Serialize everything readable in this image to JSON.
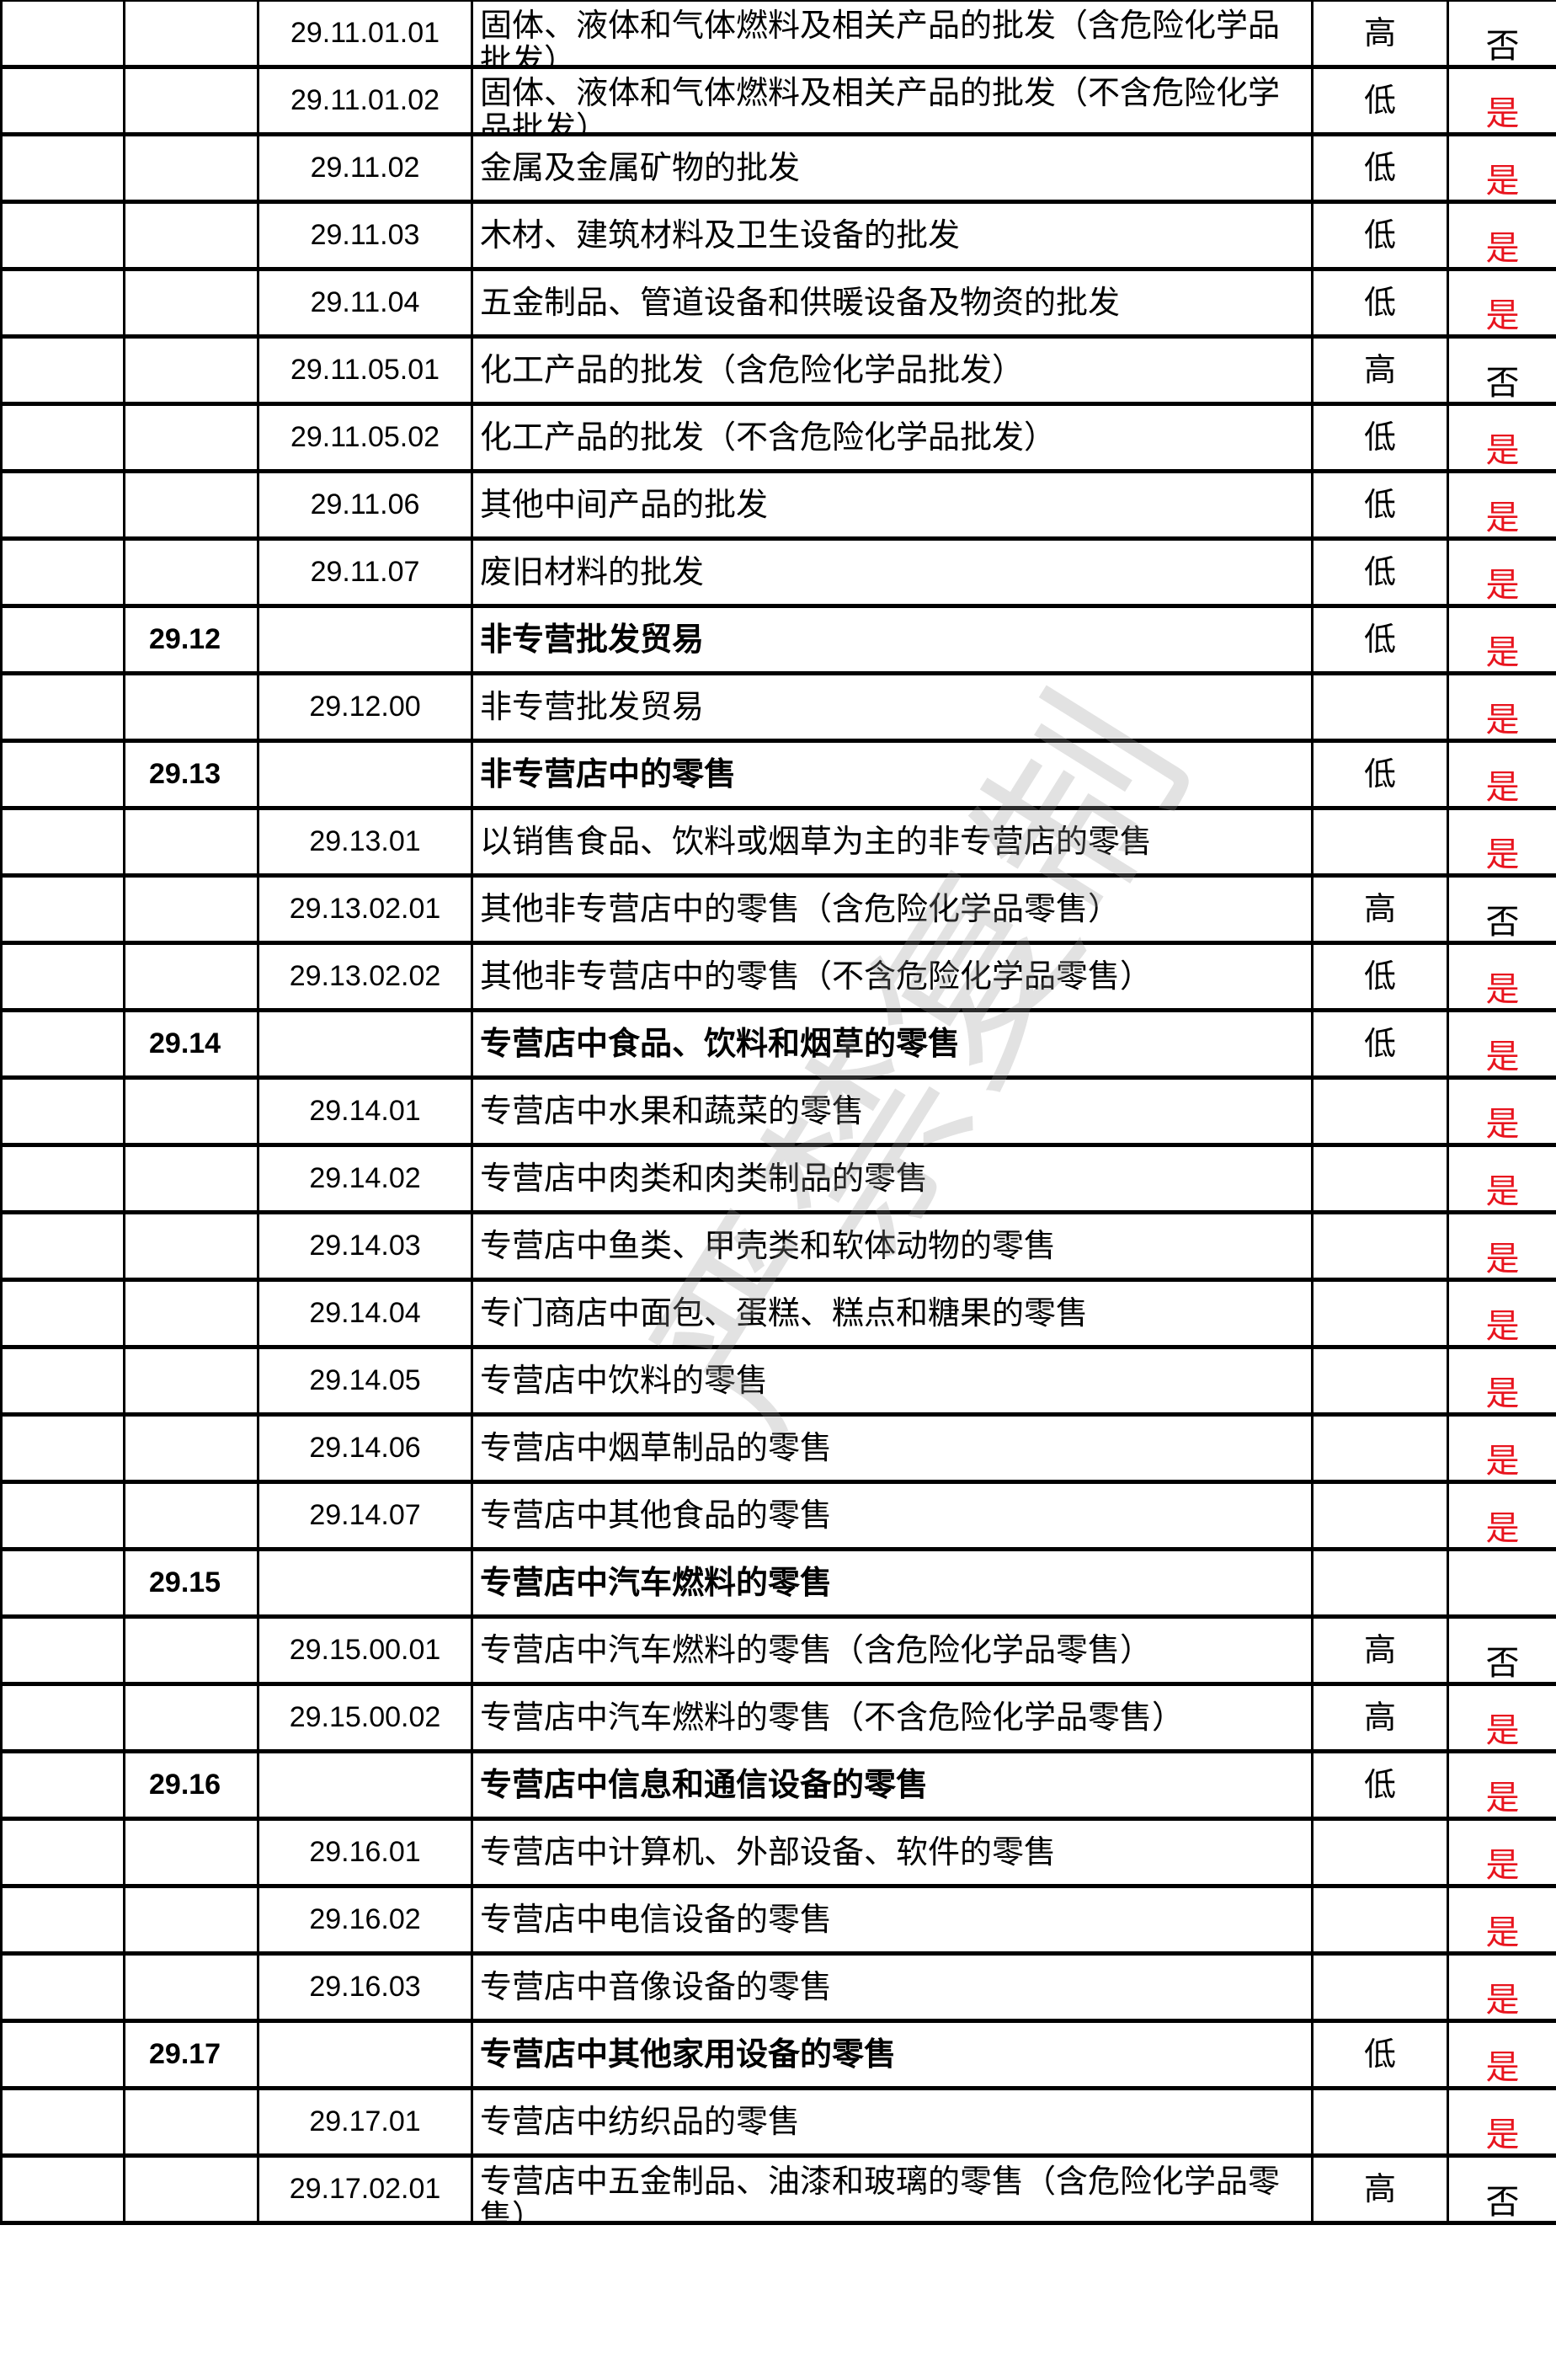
{
  "watermark": "严禁复制",
  "colors": {
    "yes": "#e8141e",
    "no": "#000000",
    "border": "#000000"
  },
  "rows": [
    {
      "group": "",
      "code": "29.11.01.01",
      "desc": "固体、液体和气体燃料及相关产品的批发（含危险化学品批发）",
      "risk": "高",
      "ok": "否"
    },
    {
      "group": "",
      "code": "29.11.01.02",
      "desc": "固体、液体和气体燃料及相关产品的批发（不含危险化学品批发）",
      "risk": "低",
      "ok": "是"
    },
    {
      "group": "",
      "code": "29.11.02",
      "desc": "金属及金属矿物的批发",
      "risk": "低",
      "ok": "是"
    },
    {
      "group": "",
      "code": "29.11.03",
      "desc": "木材、建筑材料及卫生设备的批发",
      "risk": "低",
      "ok": "是"
    },
    {
      "group": "",
      "code": "29.11.04",
      "desc": "五金制品、管道设备和供暖设备及物资的批发",
      "risk": "低",
      "ok": "是"
    },
    {
      "group": "",
      "code": "29.11.05.01",
      "desc": "化工产品的批发（含危险化学品批发）",
      "risk": "高",
      "ok": "否"
    },
    {
      "group": "",
      "code": "29.11.05.02",
      "desc": "化工产品的批发（不含危险化学品批发）",
      "risk": "低",
      "ok": "是"
    },
    {
      "group": "",
      "code": "29.11.06",
      "desc": "其他中间产品的批发",
      "risk": "低",
      "ok": "是"
    },
    {
      "group": "",
      "code": "29.11.07",
      "desc": "废旧材料的批发",
      "risk": "低",
      "ok": "是"
    },
    {
      "group": "29.12",
      "code": "",
      "desc": "非专营批发贸易",
      "risk": "低",
      "ok": "是"
    },
    {
      "group": "",
      "code": "29.12.00",
      "desc": "非专营批发贸易",
      "risk": "",
      "ok": "是"
    },
    {
      "group": "29.13",
      "code": "",
      "desc": "非专营店中的零售",
      "risk": "低",
      "ok": "是"
    },
    {
      "group": "",
      "code": "29.13.01",
      "desc": "以销售食品、饮料或烟草为主的非专营店的零售",
      "risk": "",
      "ok": "是"
    },
    {
      "group": "",
      "code": "29.13.02.01",
      "desc": "其他非专营店中的零售（含危险化学品零售）",
      "risk": "高",
      "ok": "否"
    },
    {
      "group": "",
      "code": "29.13.02.02",
      "desc": "其他非专营店中的零售（不含危险化学品零售）",
      "risk": "低",
      "ok": "是"
    },
    {
      "group": "29.14",
      "code": "",
      "desc": "专营店中食品、饮料和烟草的零售",
      "risk": "低",
      "ok": "是"
    },
    {
      "group": "",
      "code": "29.14.01",
      "desc": "专营店中水果和蔬菜的零售",
      "risk": "",
      "ok": "是"
    },
    {
      "group": "",
      "code": "29.14.02",
      "desc": "专营店中肉类和肉类制品的零售",
      "risk": "",
      "ok": "是"
    },
    {
      "group": "",
      "code": "29.14.03",
      "desc": "专营店中鱼类、甲壳类和软体动物的零售",
      "risk": "",
      "ok": "是"
    },
    {
      "group": "",
      "code": "29.14.04",
      "desc": "专门商店中面包、蛋糕、糕点和糖果的零售",
      "risk": "",
      "ok": "是"
    },
    {
      "group": "",
      "code": "29.14.05",
      "desc": "专营店中饮料的零售",
      "risk": "",
      "ok": "是"
    },
    {
      "group": "",
      "code": "29.14.06",
      "desc": "专营店中烟草制品的零售",
      "risk": "",
      "ok": "是"
    },
    {
      "group": "",
      "code": "29.14.07",
      "desc": "专营店中其他食品的零售",
      "risk": "",
      "ok": "是"
    },
    {
      "group": "29.15",
      "code": "",
      "desc": "专营店中汽车燃料的零售",
      "risk": "",
      "ok": ""
    },
    {
      "group": "",
      "code": "29.15.00.01",
      "desc": "专营店中汽车燃料的零售（含危险化学品零售）",
      "risk": "高",
      "ok": "否"
    },
    {
      "group": "",
      "code": "29.15.00.02",
      "desc": "专营店中汽车燃料的零售（不含危险化学品零售）",
      "risk": "高",
      "ok": "是"
    },
    {
      "group": "29.16",
      "code": "",
      "desc": "专营店中信息和通信设备的零售",
      "risk": "低",
      "ok": "是"
    },
    {
      "group": "",
      "code": "29.16.01",
      "desc": "专营店中计算机、外部设备、软件的零售",
      "risk": "",
      "ok": "是"
    },
    {
      "group": "",
      "code": "29.16.02",
      "desc": "专营店中电信设备的零售",
      "risk": "",
      "ok": "是"
    },
    {
      "group": "",
      "code": "29.16.03",
      "desc": "专营店中音像设备的零售",
      "risk": "",
      "ok": "是"
    },
    {
      "group": "29.17",
      "code": "",
      "desc": "专营店中其他家用设备的零售",
      "risk": "低",
      "ok": "是"
    },
    {
      "group": "",
      "code": "29.17.01",
      "desc": "专营店中纺织品的零售",
      "risk": "",
      "ok": "是"
    },
    {
      "group": "",
      "code": "29.17.02.01",
      "desc": "专营店中五金制品、油漆和玻璃的零售（含危险化学品零售）",
      "risk": "高",
      "ok": "否"
    }
  ]
}
